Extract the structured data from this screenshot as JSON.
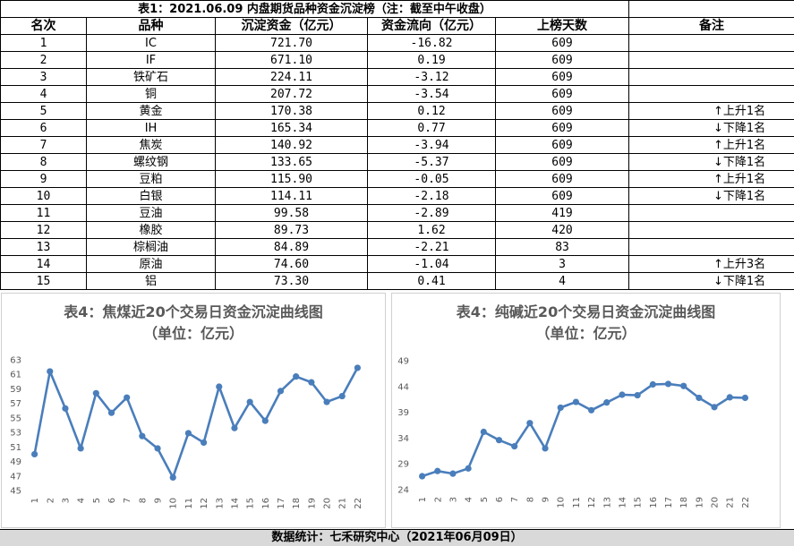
{
  "table": {
    "title": "表1：2021.06.09 内盘期货品种资金沉淀榜（注：截至中午收盘）",
    "headers": [
      "名次",
      "品种",
      "沉淀资金（亿元）",
      "资金流向（亿元）",
      "上榜天数",
      "备注"
    ],
    "rows": [
      {
        "rank": "1",
        "name": "IC",
        "deposit": "721.70",
        "flow": "-16.82",
        "days": "609",
        "note": ""
      },
      {
        "rank": "2",
        "name": "IF",
        "deposit": "671.10",
        "flow": "0.19",
        "days": "609",
        "note": ""
      },
      {
        "rank": "3",
        "name": "铁矿石",
        "deposit": "224.11",
        "flow": "-3.12",
        "days": "609",
        "note": ""
      },
      {
        "rank": "4",
        "name": "铜",
        "deposit": "207.72",
        "flow": "-3.54",
        "days": "609",
        "note": ""
      },
      {
        "rank": "5",
        "name": "黄金",
        "deposit": "170.38",
        "flow": "0.12",
        "days": "609",
        "note": "↑上升1名"
      },
      {
        "rank": "6",
        "name": "IH",
        "deposit": "165.34",
        "flow": "0.77",
        "days": "609",
        "note": "↓下降1名"
      },
      {
        "rank": "7",
        "name": "焦炭",
        "deposit": "140.92",
        "flow": "-3.94",
        "days": "609",
        "note": "↑上升1名"
      },
      {
        "rank": "8",
        "name": "螺纹钢",
        "deposit": "133.65",
        "flow": "-5.37",
        "days": "609",
        "note": "↓下降1名"
      },
      {
        "rank": "9",
        "name": "豆粕",
        "deposit": "115.90",
        "flow": "-0.05",
        "days": "609",
        "note": "↑上升1名"
      },
      {
        "rank": "10",
        "name": "白银",
        "deposit": "114.11",
        "flow": "-2.18",
        "days": "609",
        "note": "↓下降1名"
      },
      {
        "rank": "11",
        "name": "豆油",
        "deposit": "99.58",
        "flow": "-2.89",
        "days": "419",
        "note": ""
      },
      {
        "rank": "12",
        "name": "橡胶",
        "deposit": "89.73",
        "flow": "1.62",
        "days": "420",
        "note": ""
      },
      {
        "rank": "13",
        "name": "棕榈油",
        "deposit": "84.89",
        "flow": "-2.21",
        "days": "83",
        "note": ""
      },
      {
        "rank": "14",
        "name": "原油",
        "deposit": "74.60",
        "flow": "-1.04",
        "days": "3",
        "note": "↑上升3名"
      },
      {
        "rank": "15",
        "name": "铝",
        "deposit": "73.30",
        "flow": "0.41",
        "days": "4",
        "note": "↓下降1名"
      }
    ]
  },
  "chart_data": [
    {
      "type": "line",
      "title": "表4：焦煤近20个交易日资金沉淀曲线图",
      "subtitle": "（单位：亿元）",
      "x": [
        "1",
        "2",
        "3",
        "4",
        "5",
        "6",
        "7",
        "8",
        "9",
        "10",
        "11",
        "12",
        "13",
        "14",
        "15",
        "16",
        "17",
        "18",
        "19",
        "20",
        "21",
        "22"
      ],
      "values": [
        50.0,
        61.4,
        56.3,
        50.8,
        58.4,
        55.7,
        57.8,
        52.5,
        50.8,
        46.8,
        52.9,
        51.6,
        59.3,
        53.6,
        57.2,
        54.6,
        58.7,
        60.7,
        59.9,
        57.2,
        58.0,
        61.9
      ],
      "ylim": [
        45,
        63
      ],
      "yticks": [
        45,
        47,
        49,
        51,
        53,
        55,
        57,
        59,
        61,
        63
      ],
      "color": "#4a7ebb"
    },
    {
      "type": "line",
      "title": "表4：纯碱近20个交易日资金沉淀曲线图",
      "subtitle": "（单位：亿元）",
      "x": [
        "1",
        "2",
        "3",
        "4",
        "5",
        "6",
        "7",
        "8",
        "9",
        "10",
        "11",
        "12",
        "13",
        "14",
        "15",
        "16",
        "17",
        "18",
        "19",
        "20",
        "21",
        "22"
      ],
      "values": [
        26.6,
        27.6,
        27.1,
        28.1,
        35.2,
        33.6,
        32.4,
        36.9,
        32.0,
        39.9,
        41.0,
        39.4,
        40.9,
        42.4,
        42.3,
        44.4,
        44.5,
        44.1,
        41.8,
        40.0,
        41.9,
        41.8
      ],
      "ylim": [
        24,
        49
      ],
      "yticks": [
        24,
        29,
        34,
        39,
        44,
        49
      ],
      "color": "#4a7ebb"
    }
  ],
  "footer": {
    "source": "数据统计：七禾研究中心（2021年06月09日）"
  }
}
